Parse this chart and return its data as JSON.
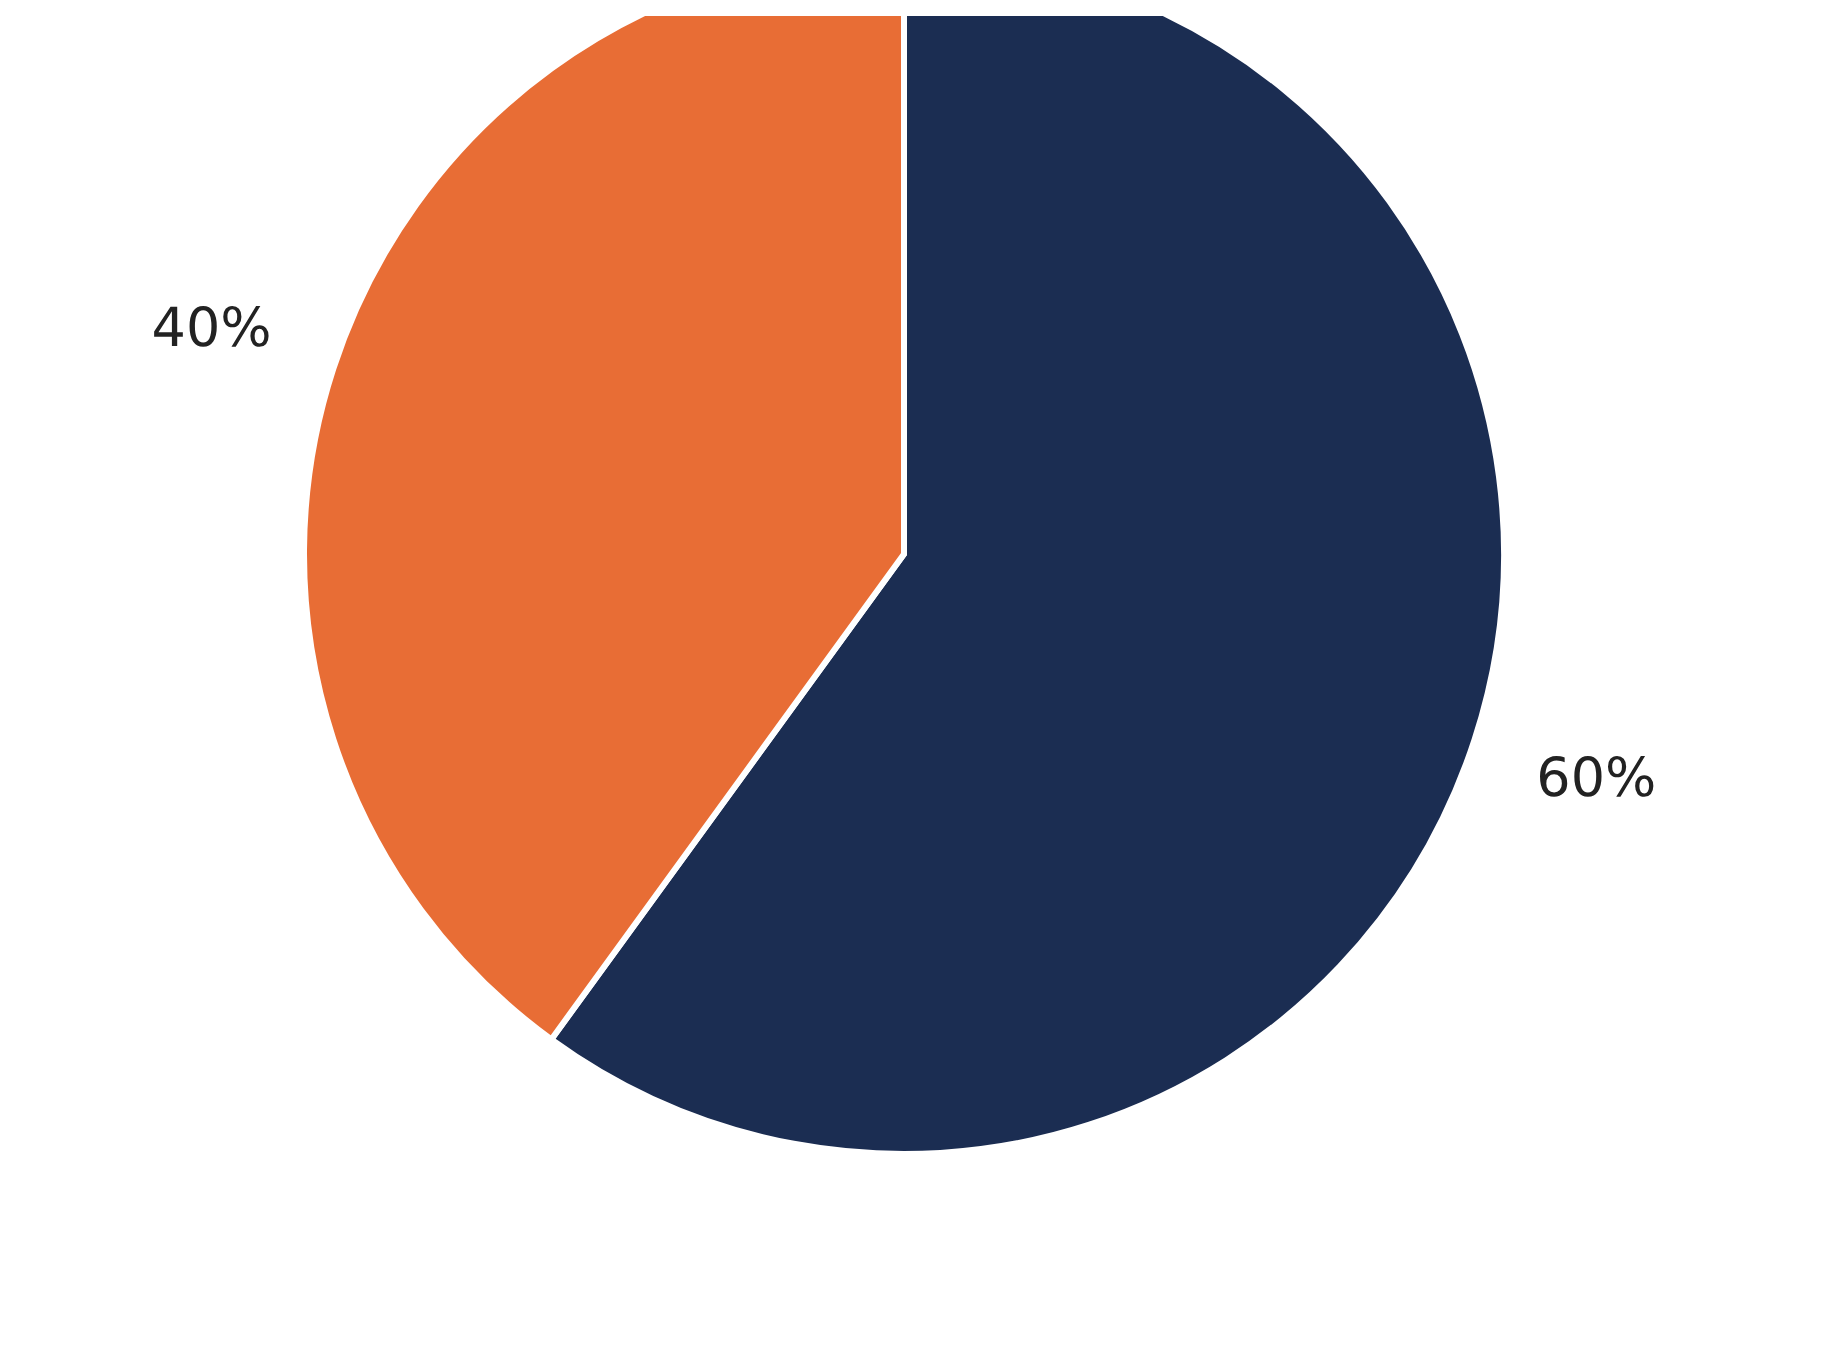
{
  "chart_data": {
    "type": "pie",
    "categories": [
      null,
      null
    ],
    "values": [
      60,
      40
    ],
    "colors": [
      "#1b2d52",
      "#e86d35"
    ],
    "value_labels": [
      "60%",
      "40%"
    ],
    "legend": false
  }
}
